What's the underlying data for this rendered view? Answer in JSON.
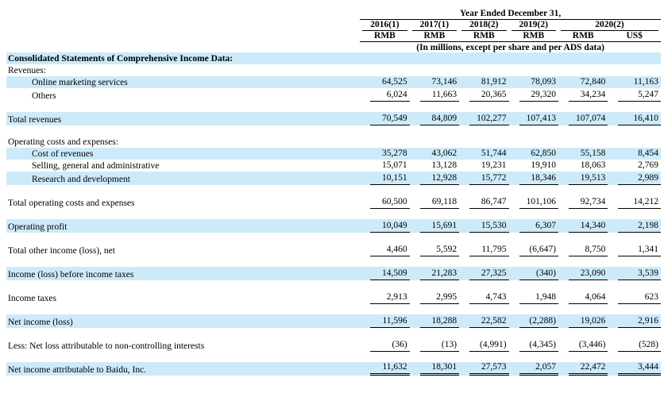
{
  "table": {
    "title_row": "Year Ended December 31,",
    "unit_note": "(In millions, except per share and per ADS data)",
    "year_headers": [
      {
        "label": "2016(1)"
      },
      {
        "label": "2017(1)"
      },
      {
        "label": "2018(2)"
      },
      {
        "label": "2019(2)"
      },
      {
        "label": "2020(2)"
      }
    ],
    "currency_headers": [
      "RMB",
      "RMB",
      "RMB",
      "RMB",
      "RMB",
      "US$"
    ],
    "highlight_color": "#cdeaf9",
    "rows": [
      {
        "label": "Consolidated Statements of Comprehensive Income Data:",
        "bold": true,
        "highlight": true,
        "indent": 0,
        "underline": "none",
        "values": [
          "",
          "",
          "",
          "",
          "",
          ""
        ]
      },
      {
        "label": "Revenues:",
        "bold": false,
        "highlight": false,
        "indent": 0,
        "underline": "none",
        "values": [
          "",
          "",
          "",
          "",
          "",
          ""
        ]
      },
      {
        "label": "Online marketing services",
        "bold": false,
        "highlight": true,
        "indent": 1,
        "underline": "none",
        "values": [
          "64,525",
          "73,146",
          "81,912",
          "78,093",
          "72,840",
          "11,163"
        ]
      },
      {
        "label": "Others",
        "bold": false,
        "highlight": false,
        "indent": 1,
        "underline": "single",
        "values": [
          "6,024",
          "11,663",
          "20,365",
          "29,320",
          "34,234",
          "5,247"
        ]
      },
      {
        "spacer": true
      },
      {
        "label": "Total revenues",
        "bold": false,
        "highlight": true,
        "indent": 0,
        "underline": "single",
        "values": [
          "70,549",
          "84,809",
          "102,277",
          "107,413",
          "107,074",
          "16,410"
        ]
      },
      {
        "spacer": true
      },
      {
        "label": "Operating costs and expenses:",
        "bold": false,
        "highlight": false,
        "indent": 0,
        "underline": "none",
        "values": [
          "",
          "",
          "",
          "",
          "",
          ""
        ]
      },
      {
        "label": "Cost of revenues",
        "bold": false,
        "highlight": true,
        "indent": 1,
        "underline": "none",
        "values": [
          "35,278",
          "43,062",
          "51,744",
          "62,850",
          "55,158",
          "8,454"
        ]
      },
      {
        "label": "Selling, general and administrative",
        "bold": false,
        "highlight": false,
        "indent": 1,
        "underline": "none",
        "values": [
          "15,071",
          "13,128",
          "19,231",
          "19,910",
          "18,063",
          "2,769"
        ]
      },
      {
        "label": "Research and development",
        "bold": false,
        "highlight": true,
        "indent": 1,
        "underline": "single",
        "values": [
          "10,151",
          "12,928",
          "15,772",
          "18,346",
          "19,513",
          "2,989"
        ]
      },
      {
        "spacer": true
      },
      {
        "label": "Total operating costs and expenses",
        "bold": false,
        "highlight": false,
        "indent": 0,
        "underline": "single",
        "values": [
          "60,500",
          "69,118",
          "86,747",
          "101,106",
          "92,734",
          "14,212"
        ]
      },
      {
        "spacer": true
      },
      {
        "label": "Operating profit",
        "bold": false,
        "highlight": true,
        "indent": 0,
        "underline": "single",
        "values": [
          "10,049",
          "15,691",
          "15,530",
          "6,307",
          "14,340",
          "2,198"
        ]
      },
      {
        "spacer": true
      },
      {
        "label": "Total other income (loss), net",
        "bold": false,
        "highlight": false,
        "indent": 0,
        "underline": "single",
        "values": [
          "4,460",
          "5,592",
          "11,795",
          "(6,647)",
          "8,750",
          "1,341"
        ]
      },
      {
        "spacer": true
      },
      {
        "label": "Income (loss) before income taxes",
        "bold": false,
        "highlight": true,
        "indent": 0,
        "underline": "single",
        "values": [
          "14,509",
          "21,283",
          "27,325",
          "(340)",
          "23,090",
          "3,539"
        ]
      },
      {
        "spacer": true
      },
      {
        "label": "Income taxes",
        "bold": false,
        "highlight": false,
        "indent": 0,
        "underline": "single",
        "values": [
          "2,913",
          "2,995",
          "4,743",
          "1,948",
          "4,064",
          "623"
        ]
      },
      {
        "spacer": true
      },
      {
        "label": "Net income (loss)",
        "bold": false,
        "highlight": true,
        "indent": 0,
        "underline": "single",
        "values": [
          "11,596",
          "18,288",
          "22,582",
          "(2,288)",
          "19,026",
          "2,916"
        ]
      },
      {
        "spacer": true
      },
      {
        "label": "Less: Net loss attributable to non-controlling interests",
        "bold": false,
        "highlight": false,
        "indent": 0,
        "underline": "single",
        "values": [
          "(36)",
          "(13)",
          "(4,991)",
          "(4,345)",
          "(3,446)",
          "(528)"
        ]
      },
      {
        "spacer": true
      },
      {
        "label": "Net income attributable to Baidu, Inc.",
        "bold": false,
        "highlight": true,
        "indent": 0,
        "underline": "double",
        "values": [
          "11,632",
          "18,301",
          "27,573",
          "2,057",
          "22,472",
          "3,444"
        ]
      }
    ]
  }
}
